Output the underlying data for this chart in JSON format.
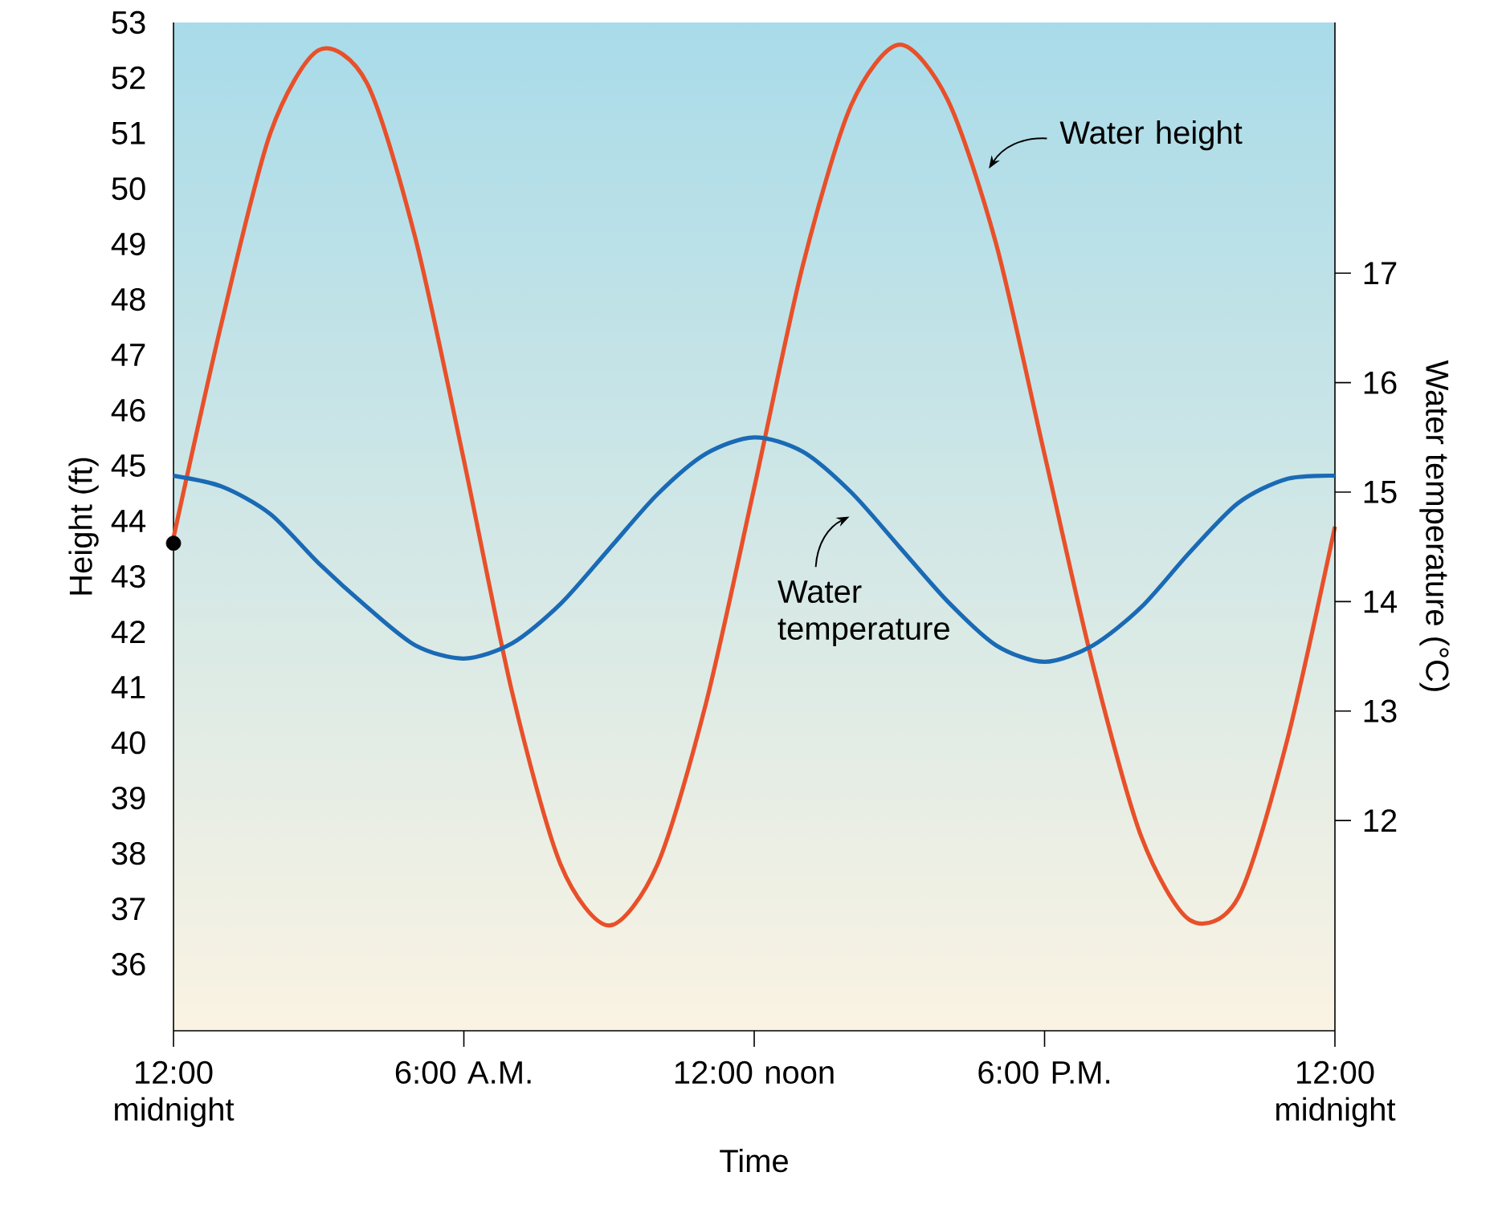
{
  "chart_data": {
    "type": "line",
    "xlabel": "Time",
    "ylabel": "Height (ft)",
    "y2label": "Water temperature (°C)",
    "x": [
      0,
      1,
      2,
      3,
      4,
      5,
      6,
      7,
      8,
      9,
      10,
      11,
      12,
      13,
      14,
      15,
      16,
      17,
      18,
      19,
      20,
      21,
      22,
      23,
      24
    ],
    "series": [
      {
        "color": "#e8502a",
        "values": [
          43.7,
          47.6,
          51.0,
          52.5,
          51.9,
          49.1,
          45.1,
          40.9,
          37.8,
          36.7,
          37.8,
          40.7,
          44.6,
          48.6,
          51.5,
          52.6,
          51.6,
          49.0,
          45.2,
          41.4,
          38.3,
          36.8,
          37.2,
          40.0,
          43.9
        ]
      },
      {
        "color": "#1a6ab5",
        "axis": "y2",
        "values": [
          15.15,
          15.05,
          14.8,
          14.35,
          13.95,
          13.6,
          13.48,
          13.62,
          13.98,
          14.48,
          14.98,
          15.35,
          15.5,
          15.37,
          15.0,
          14.5,
          14.0,
          13.6,
          13.45,
          13.6,
          13.95,
          14.45,
          14.9,
          15.12,
          15.15
        ]
      },
      {
        "type": "scatter",
        "color": "#000000",
        "marker": "circle",
        "x": [
          0
        ],
        "values": [
          43.6
        ]
      }
    ],
    "xlim": [
      0,
      24
    ],
    "xticks": [
      {
        "value": 0,
        "label": "12:00 midnight"
      },
      {
        "value": 6,
        "label": "6:00 A.M."
      },
      {
        "value": 12,
        "label": "12:00 noon"
      },
      {
        "value": 18,
        "label": "6:00 P.M."
      },
      {
        "value": 24,
        "label": "12:00 midnight"
      }
    ],
    "ylim": [
      34.8,
      53
    ],
    "yticks": [
      36,
      37,
      38,
      39,
      40,
      41,
      42,
      43,
      44,
      45,
      46,
      47,
      48,
      49,
      50,
      51,
      52,
      53
    ],
    "y2lim": [
      10.08,
      19.29
    ],
    "y2ticks": [
      12,
      13,
      14,
      15,
      16,
      17
    ],
    "grid": false,
    "marker": "none",
    "line_style": "solid",
    "annotations": [
      "Water height",
      "Water temperature"
    ]
  }
}
